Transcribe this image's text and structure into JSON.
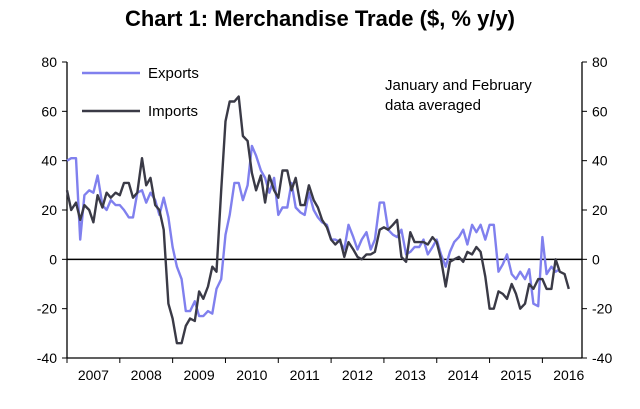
{
  "chart_data": {
    "type": "line",
    "title": "Chart 1: Merchandise Trade ($, % y/y)",
    "ylim": [
      -40,
      80
    ],
    "yticks": [
      -40,
      -20,
      0,
      20,
      40,
      60,
      80
    ],
    "xlim": [
      2007,
      2016.75
    ],
    "xticks": [
      "2007",
      "2008",
      "2009",
      "2010",
      "2011",
      "2012",
      "2013",
      "2014",
      "2015",
      "2016"
    ],
    "annotation": [
      "January and February",
      "data averaged"
    ],
    "legend_position": "top-left",
    "colors": {
      "exports": "#8080ee",
      "imports": "#3a3a46"
    },
    "series": [
      {
        "name": "Exports",
        "points": [
          [
            2007.0,
            40
          ],
          [
            2007.08,
            41
          ],
          [
            2007.17,
            41
          ],
          [
            2007.25,
            8
          ],
          [
            2007.33,
            26
          ],
          [
            2007.42,
            28
          ],
          [
            2007.5,
            27
          ],
          [
            2007.58,
            34
          ],
          [
            2007.67,
            22
          ],
          [
            2007.75,
            20
          ],
          [
            2007.83,
            24
          ],
          [
            2007.92,
            22
          ],
          [
            2008.0,
            22
          ],
          [
            2008.08,
            20
          ],
          [
            2008.17,
            17
          ],
          [
            2008.25,
            17
          ],
          [
            2008.33,
            27
          ],
          [
            2008.42,
            28
          ],
          [
            2008.5,
            23
          ],
          [
            2008.58,
            27
          ],
          [
            2008.67,
            24
          ],
          [
            2008.75,
            18
          ],
          [
            2008.83,
            25
          ],
          [
            2008.92,
            17
          ],
          [
            2009.0,
            5
          ],
          [
            2009.08,
            -3
          ],
          [
            2009.17,
            -8
          ],
          [
            2009.25,
            -21
          ],
          [
            2009.33,
            -21
          ],
          [
            2009.42,
            -17
          ],
          [
            2009.5,
            -23
          ],
          [
            2009.58,
            -23
          ],
          [
            2009.67,
            -21
          ],
          [
            2009.75,
            -22
          ],
          [
            2009.83,
            -12
          ],
          [
            2009.92,
            -8
          ],
          [
            2010.0,
            10
          ],
          [
            2010.08,
            18
          ],
          [
            2010.17,
            31
          ],
          [
            2010.25,
            31
          ],
          [
            2010.33,
            24
          ],
          [
            2010.42,
            30
          ],
          [
            2010.5,
            46
          ],
          [
            2010.58,
            42
          ],
          [
            2010.67,
            36
          ],
          [
            2010.75,
            33
          ],
          [
            2010.83,
            27
          ],
          [
            2010.92,
            33
          ],
          [
            2011.0,
            18
          ],
          [
            2011.08,
            21
          ],
          [
            2011.17,
            21
          ],
          [
            2011.25,
            31
          ],
          [
            2011.33,
            21
          ],
          [
            2011.42,
            19
          ],
          [
            2011.5,
            18
          ],
          [
            2011.58,
            27
          ],
          [
            2011.67,
            20
          ],
          [
            2011.75,
            17
          ],
          [
            2011.83,
            15
          ],
          [
            2011.92,
            14
          ],
          [
            2012.0,
            8
          ],
          [
            2012.08,
            8
          ],
          [
            2012.17,
            7
          ],
          [
            2012.25,
            4
          ],
          [
            2012.33,
            14
          ],
          [
            2012.42,
            9
          ],
          [
            2012.5,
            4
          ],
          [
            2012.58,
            8
          ],
          [
            2012.67,
            11
          ],
          [
            2012.75,
            4
          ],
          [
            2012.83,
            8
          ],
          [
            2012.92,
            23
          ],
          [
            2013.0,
            23
          ],
          [
            2013.08,
            12
          ],
          [
            2013.17,
            10
          ],
          [
            2013.25,
            9
          ],
          [
            2013.33,
            12
          ],
          [
            2013.42,
            2
          ],
          [
            2013.5,
            3
          ],
          [
            2013.58,
            5
          ],
          [
            2013.67,
            5
          ],
          [
            2013.75,
            8
          ],
          [
            2013.83,
            2
          ],
          [
            2013.92,
            5
          ],
          [
            2014.0,
            8
          ],
          [
            2014.08,
            2
          ],
          [
            2014.17,
            -3
          ],
          [
            2014.25,
            3
          ],
          [
            2014.33,
            7
          ],
          [
            2014.42,
            9
          ],
          [
            2014.5,
            12
          ],
          [
            2014.58,
            6
          ],
          [
            2014.67,
            14
          ],
          [
            2014.75,
            11
          ],
          [
            2014.83,
            14
          ],
          [
            2014.92,
            8
          ],
          [
            2015.0,
            14
          ],
          [
            2015.08,
            14
          ],
          [
            2015.17,
            -5
          ],
          [
            2015.25,
            -2
          ],
          [
            2015.33,
            2
          ],
          [
            2015.42,
            -6
          ],
          [
            2015.5,
            -8
          ],
          [
            2015.58,
            -5
          ],
          [
            2015.67,
            -8
          ],
          [
            2015.75,
            -4
          ],
          [
            2015.83,
            -18
          ],
          [
            2015.92,
            -19
          ],
          [
            2016.0,
            9
          ],
          [
            2016.08,
            -6
          ],
          [
            2016.17,
            -3
          ],
          [
            2016.25,
            -5
          ],
          [
            2016.33,
            -4
          ]
        ]
      },
      {
        "name": "Imports",
        "points": [
          [
            2007.0,
            28
          ],
          [
            2007.08,
            20
          ],
          [
            2007.17,
            23
          ],
          [
            2007.25,
            16
          ],
          [
            2007.33,
            22
          ],
          [
            2007.42,
            20
          ],
          [
            2007.5,
            15
          ],
          [
            2007.58,
            26
          ],
          [
            2007.67,
            21
          ],
          [
            2007.75,
            27
          ],
          [
            2007.83,
            25
          ],
          [
            2007.92,
            27
          ],
          [
            2008.0,
            26
          ],
          [
            2008.08,
            31
          ],
          [
            2008.17,
            31
          ],
          [
            2008.25,
            25
          ],
          [
            2008.33,
            27
          ],
          [
            2008.42,
            41
          ],
          [
            2008.5,
            30
          ],
          [
            2008.58,
            33
          ],
          [
            2008.67,
            22
          ],
          [
            2008.75,
            20
          ],
          [
            2008.83,
            12
          ],
          [
            2008.92,
            -18
          ],
          [
            2009.0,
            -24
          ],
          [
            2009.08,
            -34
          ],
          [
            2009.17,
            -34
          ],
          [
            2009.25,
            -27
          ],
          [
            2009.33,
            -24
          ],
          [
            2009.42,
            -25
          ],
          [
            2009.5,
            -13
          ],
          [
            2009.58,
            -16
          ],
          [
            2009.67,
            -11
          ],
          [
            2009.75,
            -3
          ],
          [
            2009.83,
            -5
          ],
          [
            2009.92,
            28
          ],
          [
            2010.0,
            56
          ],
          [
            2010.08,
            64
          ],
          [
            2010.17,
            64
          ],
          [
            2010.25,
            66
          ],
          [
            2010.33,
            50
          ],
          [
            2010.42,
            48
          ],
          [
            2010.5,
            35
          ],
          [
            2010.58,
            28
          ],
          [
            2010.67,
            34
          ],
          [
            2010.75,
            23
          ],
          [
            2010.83,
            34
          ],
          [
            2010.92,
            28
          ],
          [
            2011.0,
            25
          ],
          [
            2011.08,
            36
          ],
          [
            2011.17,
            36
          ],
          [
            2011.25,
            28
          ],
          [
            2011.33,
            33
          ],
          [
            2011.42,
            22
          ],
          [
            2011.5,
            22
          ],
          [
            2011.58,
            30
          ],
          [
            2011.67,
            24
          ],
          [
            2011.75,
            21
          ],
          [
            2011.83,
            16
          ],
          [
            2011.92,
            13
          ],
          [
            2012.0,
            8
          ],
          [
            2012.08,
            6
          ],
          [
            2012.17,
            8
          ],
          [
            2012.25,
            1
          ],
          [
            2012.33,
            7
          ],
          [
            2012.42,
            4
          ],
          [
            2012.5,
            1
          ],
          [
            2012.58,
            0
          ],
          [
            2012.67,
            2
          ],
          [
            2012.75,
            2
          ],
          [
            2012.83,
            3
          ],
          [
            2012.92,
            12
          ],
          [
            2013.0,
            13
          ],
          [
            2013.08,
            12
          ],
          [
            2013.17,
            14
          ],
          [
            2013.25,
            16
          ],
          [
            2013.33,
            1
          ],
          [
            2013.42,
            -1
          ],
          [
            2013.5,
            11
          ],
          [
            2013.58,
            7
          ],
          [
            2013.67,
            7
          ],
          [
            2013.75,
            7
          ],
          [
            2013.83,
            6
          ],
          [
            2013.92,
            9
          ],
          [
            2014.0,
            7
          ],
          [
            2014.08,
            0
          ],
          [
            2014.17,
            -11
          ],
          [
            2014.25,
            -1
          ],
          [
            2014.33,
            0
          ],
          [
            2014.42,
            1
          ],
          [
            2014.5,
            -1
          ],
          [
            2014.58,
            3
          ],
          [
            2014.67,
            2
          ],
          [
            2014.75,
            5
          ],
          [
            2014.83,
            3
          ],
          [
            2014.92,
            -7
          ],
          [
            2015.0,
            -20
          ],
          [
            2015.08,
            -20
          ],
          [
            2015.17,
            -13
          ],
          [
            2015.25,
            -14
          ],
          [
            2015.33,
            -16
          ],
          [
            2015.42,
            -10
          ],
          [
            2015.5,
            -14
          ],
          [
            2015.58,
            -20
          ],
          [
            2015.67,
            -18
          ],
          [
            2015.75,
            -10
          ],
          [
            2015.83,
            -12
          ],
          [
            2015.92,
            -8
          ],
          [
            2016.0,
            -8
          ],
          [
            2016.08,
            -12
          ],
          [
            2016.17,
            -12
          ],
          [
            2016.25,
            0
          ],
          [
            2016.33,
            -5
          ],
          [
            2016.42,
            -6
          ],
          [
            2016.5,
            -12
          ]
        ]
      }
    ]
  }
}
